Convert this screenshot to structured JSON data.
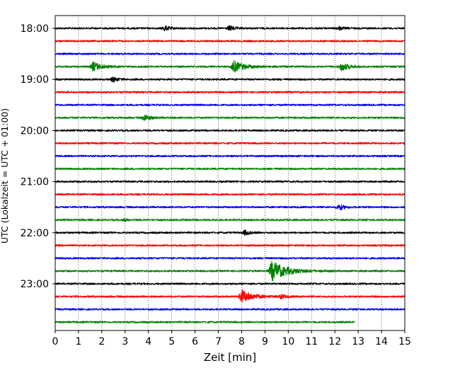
{
  "chart_data": {
    "type": "line",
    "title": "",
    "xlabel": "Zeit  [min]",
    "ylabel": "UTC (Lokalzeit = UTC + 01:00)",
    "xlim": [
      0,
      15
    ],
    "x_ticks": [
      "0",
      "1",
      "2",
      "3",
      "4",
      "5",
      "6",
      "7",
      "8",
      "9",
      "10",
      "11",
      "12",
      "13",
      "14",
      "15"
    ],
    "y_ticks": [
      {
        "label": "18:00",
        "row": 0
      },
      {
        "label": "19:00",
        "row": 4
      },
      {
        "label": "20:00",
        "row": 8
      },
      {
        "label": "21:00",
        "row": 12
      },
      {
        "label": "22:00",
        "row": 16
      },
      {
        "label": "23:00",
        "row": 20
      }
    ],
    "grid": "vertical dotted",
    "colors": [
      "#000000",
      "#ff0000",
      "#0000ff",
      "#008000"
    ],
    "rows": [
      {
        "start": "18:00",
        "end_min": 15,
        "events": [
          {
            "t": 4.7,
            "a": 0.35
          },
          {
            "t": 7.5,
            "a": 0.35
          },
          {
            "t": 12.2,
            "a": 0.25
          }
        ]
      },
      {
        "start": "18:15",
        "end_min": 15,
        "events": []
      },
      {
        "start": "18:30",
        "end_min": 15,
        "events": []
      },
      {
        "start": "18:45",
        "end_min": 15,
        "events": [
          {
            "t": 1.65,
            "a": 0.7
          },
          {
            "t": 7.65,
            "a": 0.9
          },
          {
            "t": 12.3,
            "a": 0.6
          }
        ]
      },
      {
        "start": "19:00",
        "end_min": 15,
        "events": [
          {
            "t": 2.5,
            "a": 0.35
          }
        ]
      },
      {
        "start": "19:15",
        "end_min": 15,
        "events": []
      },
      {
        "start": "19:30",
        "end_min": 15,
        "events": []
      },
      {
        "start": "19:45",
        "end_min": 15,
        "events": [
          {
            "t": 3.85,
            "a": 0.45
          }
        ]
      },
      {
        "start": "20:00",
        "end_min": 15,
        "events": []
      },
      {
        "start": "20:15",
        "end_min": 15,
        "events": []
      },
      {
        "start": "20:30",
        "end_min": 15,
        "events": []
      },
      {
        "start": "20:45",
        "end_min": 15,
        "events": []
      },
      {
        "start": "21:00",
        "end_min": 15,
        "events": []
      },
      {
        "start": "21:15",
        "end_min": 15,
        "events": []
      },
      {
        "start": "21:30",
        "end_min": 15,
        "events": [
          {
            "t": 12.2,
            "a": 0.4
          }
        ]
      },
      {
        "start": "21:45",
        "end_min": 15,
        "events": [
          {
            "t": 3.0,
            "a": 0.15
          }
        ]
      },
      {
        "start": "22:00",
        "end_min": 15,
        "events": [
          {
            "t": 8.15,
            "a": 0.35
          }
        ]
      },
      {
        "start": "22:15",
        "end_min": 15,
        "events": []
      },
      {
        "start": "22:30",
        "end_min": 15,
        "events": []
      },
      {
        "start": "22:45",
        "end_min": 15,
        "events": [
          {
            "t": 9.3,
            "a": 1.5
          }
        ]
      },
      {
        "start": "23:00",
        "end_min": 15,
        "events": []
      },
      {
        "start": "23:15",
        "end_min": 15,
        "events": [
          {
            "t": 8.0,
            "a": 1.0
          },
          {
            "t": 9.7,
            "a": 0.3
          }
        ]
      },
      {
        "start": "23:30",
        "end_min": 15,
        "events": []
      },
      {
        "start": "23:45",
        "end_min": 12.85,
        "events": []
      }
    ]
  }
}
